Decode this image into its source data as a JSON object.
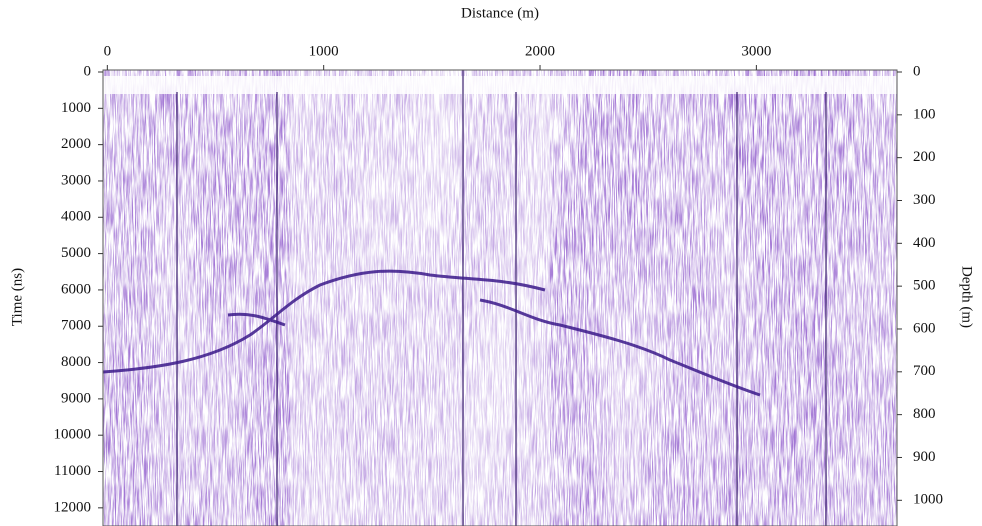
{
  "chart_data": {
    "type": "radargram",
    "xlabel": "Distance (m)",
    "ylabel": "Time (ns)",
    "y2label": "Depth (m)",
    "xlim": [
      -20,
      3650
    ],
    "xticks": [
      0,
      1000,
      2000,
      3000
    ],
    "ylim": [
      0,
      12500
    ],
    "yticks": [
      0,
      1000,
      2000,
      3000,
      4000,
      5000,
      6000,
      7000,
      8000,
      9000,
      10000,
      11000,
      12000
    ],
    "y2lim": [
      0,
      1060
    ],
    "y2ticks": [
      0,
      100,
      200,
      300,
      400,
      500,
      600,
      700,
      800,
      900,
      1000
    ]
  }
}
